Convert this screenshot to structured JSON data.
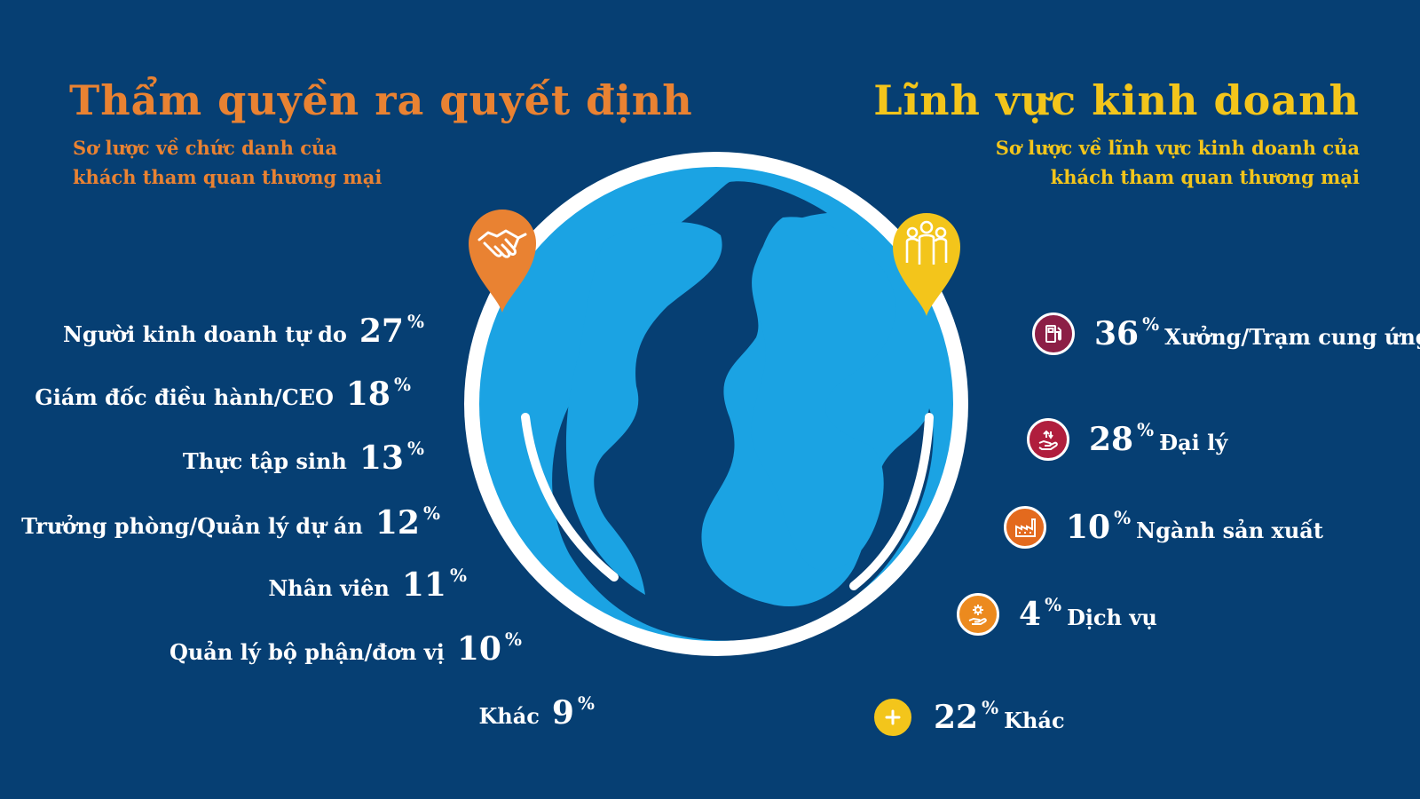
{
  "left": {
    "title": "Thẩm quyền ra quyết định",
    "subtitle_line1": "Sơ lược về chức danh của",
    "subtitle_line2": "khách tham quan thương mại",
    "items": [
      {
        "label": "Người kinh doanh tự do",
        "value": "27",
        "unit": "%"
      },
      {
        "label": "Giám đốc điều hành/CEO",
        "value": "18",
        "unit": "%"
      },
      {
        "label": "Thực tập sinh",
        "value": "13",
        "unit": "%"
      },
      {
        "label": "Trưởng phòng/Quản lý dự án",
        "value": "12",
        "unit": "%"
      },
      {
        "label": "Nhân viên",
        "value": "11",
        "unit": "%"
      },
      {
        "label": "Quản lý bộ phận/đơn vị",
        "value": "10",
        "unit": "%"
      },
      {
        "label": "Khác",
        "value": "9",
        "unit": "%"
      }
    ]
  },
  "right": {
    "title": "Lĩnh vực kinh doanh",
    "subtitle_line1": "Sơ lược về lĩnh vực kinh doanh của",
    "subtitle_line2": "khách tham quan thương mại",
    "items": [
      {
        "label": "Xưởng/Trạm cung ứng",
        "value": "36",
        "unit": "%",
        "icon": "fuel-pump-icon",
        "color": "#8c1f46"
      },
      {
        "label": "Đại lý",
        "value": "28",
        "unit": "%",
        "icon": "money-hand-icon",
        "color": "#b01e3d"
      },
      {
        "label": "Ngành sản xuất",
        "value": "10",
        "unit": "%",
        "icon": "factory-icon",
        "color": "#e36a1e"
      },
      {
        "label": "Dịch vụ",
        "value": "4",
        "unit": "%",
        "icon": "service-gear-hand-icon",
        "color": "#ec8a1e"
      },
      {
        "label": "Khác",
        "value": "22",
        "unit": "%",
        "icon": "plus-icon",
        "color": "#f3c51b"
      }
    ]
  },
  "colors": {
    "background": "#063f73",
    "left_accent": "#e98232",
    "right_accent": "#f3c51b",
    "globe": "#1ba3e3"
  },
  "icons": {
    "left_pin": "handshake-icon",
    "right_pin": "people-group-icon",
    "center": "globe-icon"
  }
}
